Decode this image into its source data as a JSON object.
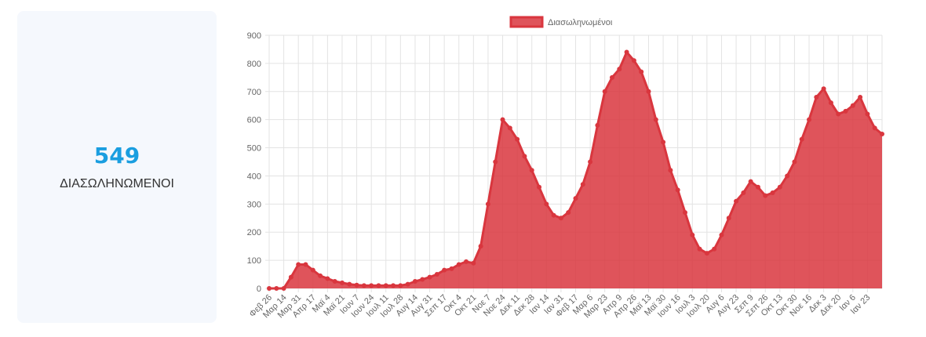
{
  "card": {
    "value": 549,
    "label": "ΔΙΑΣΩΛΗΝΩΜΕΝΟΙ"
  },
  "chart_data": {
    "type": "area",
    "categories": [
      "Φεβ 26",
      null,
      "Μαρ 14",
      null,
      "Μαρ 31",
      null,
      "Απρ 17",
      null,
      "Μαϊ 4",
      null,
      "Μαϊ 21",
      null,
      "Ιουν 7",
      null,
      "Ιουν 24",
      null,
      "Ιουλ 11",
      null,
      "Ιουλ 28",
      null,
      "Αυγ 14",
      null,
      "Αυγ 31",
      null,
      "Σεπ 17",
      null,
      "Οκτ 4",
      null,
      "Οκτ 21",
      null,
      "Νοε 7",
      null,
      "Νοε 24",
      null,
      "Δεκ 11",
      null,
      "Δεκ 28",
      null,
      "Ιαν 14",
      null,
      "Ιαν 31",
      null,
      "Φεβ 17",
      null,
      "Μαρ 6",
      null,
      "Μαρ 23",
      null,
      "Απρ 9",
      null,
      "Απρ 26",
      null,
      "Μαϊ 13",
      null,
      "Μαϊ 30",
      null,
      "Ιουν 16",
      null,
      "Ιουλ 3",
      null,
      "Ιουλ 20",
      null,
      "Αυγ 6",
      null,
      "Αυγ 23",
      null,
      "Σεπ 9",
      null,
      "Σεπ 26",
      null,
      "Οκτ 13",
      null,
      "Οκτ 30",
      null,
      "Νοε 16",
      null,
      "Δεκ 3",
      null,
      "Δεκ 20",
      null,
      "Ιαν 6",
      null,
      "Ιαν 23",
      null,
      null
    ],
    "series": [
      {
        "name": "Διασωληνωμένοι",
        "color": "#d9363e",
        "fill": "rgba(217,54,62,0.85)",
        "values": [
          0,
          0,
          0,
          40,
          85,
          85,
          65,
          45,
          35,
          25,
          20,
          15,
          12,
          10,
          10,
          10,
          10,
          10,
          10,
          15,
          25,
          32,
          40,
          50,
          65,
          70,
          85,
          95,
          90,
          150,
          300,
          450,
          600,
          570,
          530,
          470,
          420,
          360,
          300,
          260,
          250,
          270,
          320,
          370,
          450,
          580,
          700,
          750,
          780,
          840,
          810,
          770,
          700,
          600,
          520,
          420,
          350,
          270,
          190,
          140,
          125,
          140,
          190,
          250,
          310,
          340,
          380,
          360,
          330,
          340,
          360,
          400,
          450,
          530,
          600,
          680,
          710,
          660,
          620,
          630,
          650,
          680,
          620,
          570,
          549
        ]
      }
    ],
    "ylim": [
      0,
      900
    ],
    "yticks": [
      0,
      100,
      200,
      300,
      400,
      500,
      600,
      700,
      800,
      900
    ],
    "grid": true,
    "legend": "top"
  }
}
